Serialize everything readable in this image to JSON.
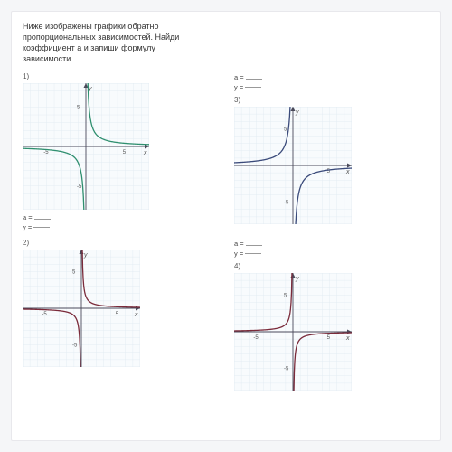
{
  "problem_text": "Ниже изображены графики обратно пропорциональных зависимостей. Найди коэффициент a и запиши формулу зависимости.",
  "answer_a_label": "a =",
  "answer_y_label": "y =",
  "grid": {
    "bg": "#f8fbfd",
    "line": "#dfeaf1",
    "axis": "#4a4a5a",
    "tick_label_color": "#555",
    "tick_fontsize": 6
  },
  "charts": [
    {
      "num": "1)",
      "size": 140,
      "xlim": [
        -8,
        8
      ],
      "ylim": [
        -8,
        8
      ],
      "xticks": [
        -5,
        5
      ],
      "yticks": [
        -5,
        5
      ],
      "axis_labels": {
        "x": "x",
        "y": "y"
      },
      "curve_color": "#2f8f6f",
      "curve_width": 1.3,
      "a": 2,
      "curve_type": "a/x"
    },
    {
      "num": "3)",
      "size": 130,
      "xlim": [
        -8,
        8
      ],
      "ylim": [
        -8,
        8
      ],
      "xticks": [
        5
      ],
      "yticks": [
        -5,
        5
      ],
      "axis_labels": {
        "x": "x",
        "y": "y"
      },
      "curve_color": "#3a4a7a",
      "curve_width": 1.3,
      "a": -3,
      "curve_type": "a/x"
    },
    {
      "num": "2)",
      "size": 130,
      "xlim": [
        -8,
        8
      ],
      "ylim": [
        -8,
        8
      ],
      "xticks": [
        -5,
        5
      ],
      "yticks": [
        -5,
        5
      ],
      "axis_labels": {
        "x": "x",
        "y": "y"
      },
      "curve_color": "#7a2a3a",
      "curve_width": 1.3,
      "a": 1,
      "curve_type": "a/x"
    },
    {
      "num": "4)",
      "size": 130,
      "xlim": [
        -8,
        8
      ],
      "ylim": [
        -8,
        8
      ],
      "xticks": [
        -5,
        5
      ],
      "yticks": [
        -5,
        5
      ],
      "axis_labels": {
        "x": "x",
        "y": "y"
      },
      "curve_color": "#7a2a3a",
      "curve_width": 1.3,
      "a": -1,
      "curve_type": "a/x"
    }
  ]
}
